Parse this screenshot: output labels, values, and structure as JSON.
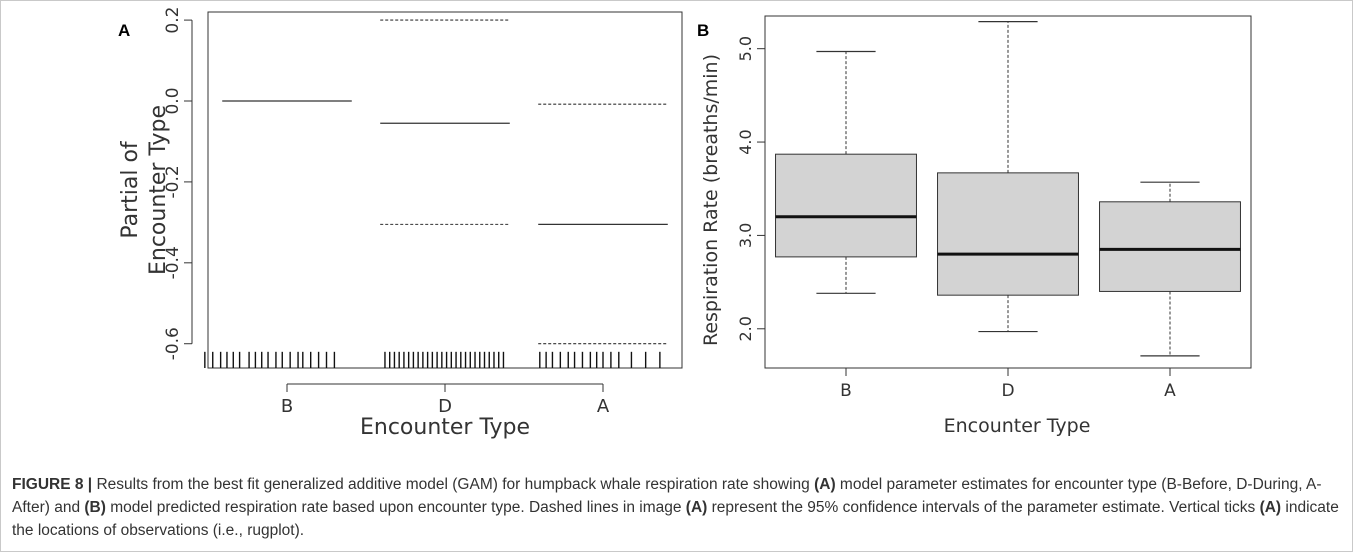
{
  "chart_data": [
    {
      "panel": "A",
      "type": "box",
      "xlabel": "Encounter Type",
      "ylabel_lines": [
        "Partial of",
        "Encounter Type"
      ],
      "categories": [
        "B",
        "D",
        "A"
      ],
      "ylim": [
        -0.66,
        0.22
      ],
      "yticks": [
        -0.6,
        -0.4,
        -0.2,
        0.0,
        0.2
      ],
      "ytick_labels": [
        "-0.6",
        "-0.4",
        "-0.2",
        "0.0",
        "0.2"
      ],
      "estimates": [
        0.0,
        -0.055,
        -0.305
      ],
      "ci_upper": [
        null,
        0.2,
        -0.008
      ],
      "ci_lower": [
        null,
        -0.305,
        -0.6
      ],
      "rug": [
        [
          0.48,
          0.53,
          0.58,
          0.62,
          0.66,
          0.7,
          0.76,
          0.8,
          0.84,
          0.88,
          0.93,
          0.97,
          1.02,
          1.07,
          1.1,
          1.15,
          1.2,
          1.25,
          1.3
        ],
        [
          1.62,
          1.65,
          1.68,
          1.71,
          1.74,
          1.77,
          1.8,
          1.83,
          1.86,
          1.89,
          1.92,
          1.95,
          1.98,
          2.01,
          2.04,
          2.07,
          2.1,
          2.13,
          2.16,
          2.19,
          2.22,
          2.25,
          2.28,
          2.31,
          2.34,
          2.37
        ],
        [
          2.6,
          2.64,
          2.68,
          2.73,
          2.78,
          2.82,
          2.87,
          2.92,
          2.96,
          3.0,
          3.05,
          3.1,
          3.18,
          3.27,
          3.36
        ]
      ]
    },
    {
      "panel": "B",
      "type": "box",
      "xlabel": "Encounter Type",
      "ylabel": "Respiration Rate (breaths/min)",
      "categories": [
        "B",
        "D",
        "A"
      ],
      "ylim": [
        1.58,
        5.35
      ],
      "yticks": [
        2.0,
        3.0,
        4.0,
        5.0
      ],
      "ytick_labels": [
        "2.0",
        "3.0",
        "4.0",
        "5.0"
      ],
      "boxes": [
        {
          "category": "B",
          "min": 2.38,
          "q1": 2.77,
          "median": 3.2,
          "q3": 3.87,
          "max": 4.97
        },
        {
          "category": "D",
          "min": 1.97,
          "q1": 2.36,
          "median": 2.8,
          "q3": 3.67,
          "max": 5.29
        },
        {
          "category": "A",
          "min": 1.71,
          "q1": 2.4,
          "median": 2.85,
          "q3": 3.36,
          "max": 3.57
        }
      ]
    }
  ],
  "caption": {
    "lead": "FIGURE 8 |",
    "t1": " Results from the best fit generalized additive model (GAM) for humpback whale respiration rate showing ",
    "a1": "(A)",
    "t2": " model parameter estimates for encounter type (B-Before, D-During, A-After) and ",
    "b1": "(B)",
    "t3": " model predicted respiration rate based upon encounter type. Dashed lines in image ",
    "a2": "(A)",
    "t4": " represent the 95% confidence intervals of the parameter estimate. Vertical ticks ",
    "a3": "(A)",
    "t5": " indicate the locations of observations (i.e., rugplot)."
  }
}
